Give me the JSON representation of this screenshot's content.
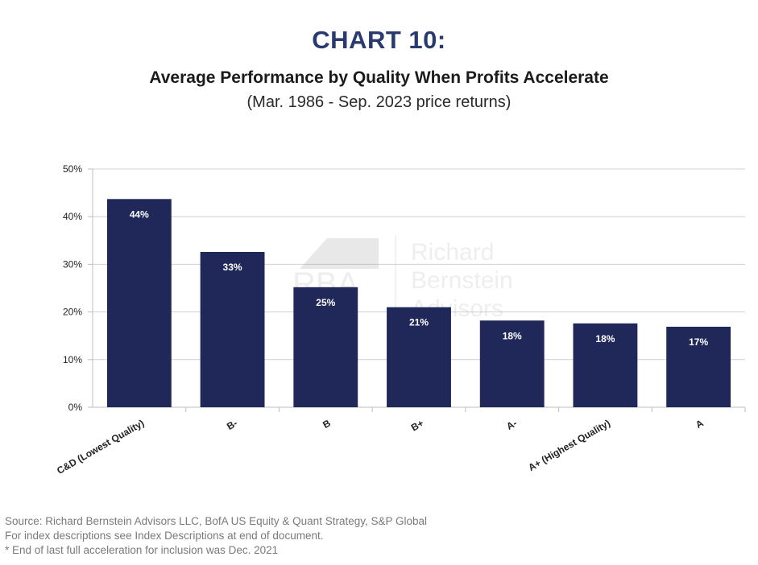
{
  "header": {
    "chart_number": "CHART 10:",
    "title": "Average Performance by Quality When Profits Accelerate",
    "subtitle": "(Mar. 1986 - Sep. 2023 price returns)"
  },
  "watermark": {
    "logo_text": "RBA",
    "company_lines": [
      "Richard",
      "Bernstein",
      "Advisors"
    ]
  },
  "footer": {
    "lines": [
      "Source: Richard Bernstein Advisors LLC, BofA US Equity & Quant Strategy, S&P Global",
      "For index descriptions see Index Descriptions at end of document.",
      "* End of last full acceleration for inclusion was Dec. 2021"
    ]
  },
  "colors": {
    "bar": "#1f2859",
    "grid": "#d0d0d0",
    "axis": "#bdbdbd",
    "bar_label": "#ffffff"
  },
  "chart_data": {
    "type": "bar",
    "categories": [
      "C&D (Lowest Quality)",
      "B-",
      "B",
      "B+",
      "A-",
      "A+ (Highest Quality)",
      "A"
    ],
    "values": [
      43.7,
      32.6,
      25.2,
      21.0,
      18.2,
      17.6,
      16.9
    ],
    "data_labels": [
      "44%",
      "33%",
      "25%",
      "21%",
      "18%",
      "18%",
      "17%"
    ],
    "yticks": [
      "0%",
      "10%",
      "20%",
      "30%",
      "40%",
      "50%"
    ],
    "ylim": [
      0,
      50
    ],
    "grid": true,
    "legend": "none"
  }
}
